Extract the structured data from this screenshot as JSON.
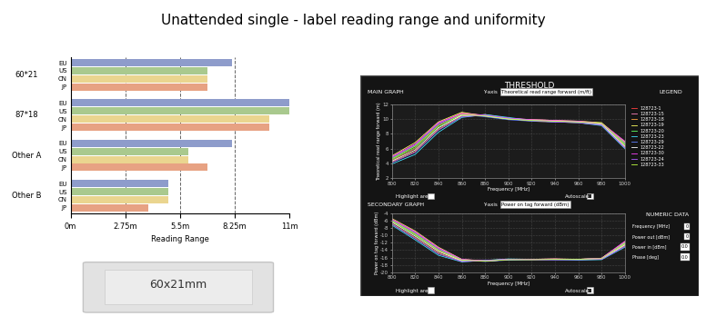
{
  "title": "Unattended single - label reading range and uniformity",
  "chart_data": [
    {
      "type": "bar",
      "orientation": "horizontal",
      "grid": true,
      "categories": [
        "60*21",
        "87*18",
        "Other A",
        "Other B"
      ],
      "series": [
        {
          "name": "EU",
          "color": "#8e9ccb",
          "values": [
            8.1,
            11.0,
            8.1,
            4.9
          ]
        },
        {
          "name": "US",
          "color": "#a9c98e",
          "values": [
            6.9,
            11.0,
            5.9,
            4.9
          ]
        },
        {
          "name": "CN",
          "color": "#ead58f",
          "values": [
            6.9,
            10.0,
            5.9,
            4.9
          ]
        },
        {
          "name": "JP",
          "color": "#e7a283",
          "values": [
            6.9,
            10.0,
            6.9,
            3.9
          ]
        }
      ],
      "xlabel": "Reading Range",
      "xlim": [
        0,
        11
      ],
      "xticks": [
        {
          "value": 0,
          "label": "0m"
        },
        {
          "value": 2.75,
          "label": "2.75m"
        },
        {
          "value": 5.5,
          "label": "5.5m"
        },
        {
          "value": 8.25,
          "label": "8.25m"
        },
        {
          "value": 11,
          "label": "11m"
        }
      ]
    },
    {
      "type": "line",
      "grid": true,
      "legend": "right",
      "xlabel": "Frequency [MHz]",
      "ylabel": "Theoretical read range forward (m)",
      "x": [
        800,
        820,
        840,
        860,
        880,
        900,
        920,
        940,
        960,
        980,
        1000
      ],
      "xlim": [
        800,
        1000
      ],
      "xticks": [
        800,
        820,
        840,
        860,
        880,
        900,
        920,
        940,
        960,
        980,
        1000
      ],
      "ylim": [
        2,
        12
      ],
      "yticks": [
        2,
        4,
        6,
        8,
        10,
        12
      ],
      "series": [
        {
          "name": "128723-1",
          "color": "#ff4040",
          "values": [
            4.4,
            6.0,
            9.2,
            10.7,
            10.4,
            10.0,
            9.8,
            9.7,
            9.7,
            9.4,
            6.4
          ]
        },
        {
          "name": "128723-15",
          "color": "#ff80c0",
          "values": [
            4.8,
            6.5,
            9.4,
            10.8,
            10.5,
            10.1,
            9.9,
            9.8,
            9.6,
            9.3,
            6.8
          ]
        },
        {
          "name": "128723-18",
          "color": "#ffa040",
          "values": [
            4.2,
            5.6,
            8.6,
            10.4,
            10.6,
            10.1,
            9.7,
            9.6,
            9.5,
            9.2,
            6.2
          ]
        },
        {
          "name": "128723-19",
          "color": "#ffff60",
          "values": [
            5.0,
            6.8,
            9.6,
            10.9,
            10.4,
            10.0,
            9.9,
            9.8,
            9.7,
            9.5,
            6.9
          ]
        },
        {
          "name": "128723-20",
          "color": "#60ff60",
          "values": [
            4.5,
            6.1,
            8.9,
            10.5,
            10.5,
            10.0,
            9.8,
            9.7,
            9.6,
            9.4,
            6.5
          ]
        },
        {
          "name": "128723-23",
          "color": "#40e0ff",
          "values": [
            3.9,
            5.2,
            8.2,
            10.2,
            10.6,
            10.2,
            9.8,
            9.6,
            9.5,
            9.1,
            6.0
          ]
        },
        {
          "name": "128723-29",
          "color": "#6080ff",
          "values": [
            4.7,
            6.4,
            9.3,
            10.6,
            10.3,
            9.9,
            9.7,
            9.6,
            9.6,
            9.3,
            6.7
          ]
        },
        {
          "name": "128723-22",
          "color": "#ffffff",
          "values": [
            4.3,
            5.8,
            8.8,
            10.5,
            10.4,
            10.0,
            9.8,
            9.7,
            9.6,
            9.3,
            6.3
          ]
        },
        {
          "name": "128723-30",
          "color": "#ff40ff",
          "values": [
            4.9,
            6.6,
            9.5,
            10.7,
            10.5,
            10.1,
            9.9,
            9.8,
            9.7,
            9.4,
            7.0
          ]
        },
        {
          "name": "128723-24",
          "color": "#b060ff",
          "values": [
            4.1,
            5.5,
            8.5,
            10.3,
            10.5,
            10.1,
            9.8,
            9.6,
            9.5,
            9.2,
            6.1
          ]
        },
        {
          "name": "128723-33",
          "color": "#c0ff40",
          "values": [
            4.6,
            6.3,
            9.1,
            10.6,
            10.4,
            10.0,
            9.8,
            9.7,
            9.6,
            9.4,
            6.6
          ]
        }
      ]
    },
    {
      "type": "line",
      "grid": true,
      "xlabel": "Frequency [MHz]",
      "ylabel": "Power on tag forward (dBm)",
      "x": [
        800,
        820,
        840,
        860,
        880,
        900,
        920,
        940,
        960,
        980,
        1000
      ],
      "xlim": [
        800,
        1000
      ],
      "xticks": [
        800,
        820,
        840,
        860,
        880,
        900,
        920,
        940,
        960,
        980,
        1000
      ],
      "ylim": [
        -20,
        -4
      ],
      "yticks": [
        -20,
        -18,
        -16,
        -14,
        -12,
        -10,
        -8,
        -6,
        -4
      ],
      "series": [
        {
          "color": "#ff4040",
          "values": [
            -6.2,
            -9.8,
            -14.2,
            -16.8,
            -17.0,
            -16.6,
            -16.6,
            -16.5,
            -16.5,
            -16.3,
            -12.4
          ]
        },
        {
          "color": "#ff80c0",
          "values": [
            -5.8,
            -9.2,
            -13.6,
            -16.6,
            -16.9,
            -16.5,
            -16.5,
            -16.4,
            -16.6,
            -16.4,
            -12.0
          ]
        },
        {
          "color": "#ffa040",
          "values": [
            -6.8,
            -10.6,
            -14.8,
            -17.0,
            -16.8,
            -16.5,
            -16.6,
            -16.6,
            -16.6,
            -16.5,
            -12.8
          ]
        },
        {
          "color": "#ffff60",
          "values": [
            -5.4,
            -8.8,
            -13.2,
            -16.5,
            -17.0,
            -16.6,
            -16.5,
            -16.4,
            -16.5,
            -16.2,
            -11.8
          ]
        },
        {
          "color": "#60ff60",
          "values": [
            -6.1,
            -9.9,
            -14.0,
            -16.7,
            -16.9,
            -16.6,
            -16.6,
            -16.5,
            -16.5,
            -16.3,
            -12.3
          ]
        },
        {
          "color": "#40e0ff",
          "values": [
            -7.2,
            -11.2,
            -15.4,
            -17.2,
            -16.8,
            -16.4,
            -16.5,
            -16.6,
            -16.7,
            -16.6,
            -13.2
          ]
        },
        {
          "color": "#6080ff",
          "values": [
            -5.9,
            -9.4,
            -13.8,
            -16.6,
            -17.1,
            -16.7,
            -16.6,
            -16.6,
            -16.5,
            -16.3,
            -12.1
          ]
        },
        {
          "color": "#ffffff",
          "values": [
            -6.4,
            -10.2,
            -14.4,
            -16.9,
            -17.0,
            -16.6,
            -16.5,
            -16.5,
            -16.5,
            -16.4,
            -12.6
          ]
        },
        {
          "color": "#ff40ff",
          "values": [
            -5.6,
            -9.0,
            -13.4,
            -16.5,
            -16.9,
            -16.5,
            -16.5,
            -16.4,
            -16.5,
            -16.2,
            -11.6
          ]
        },
        {
          "color": "#b060ff",
          "values": [
            -6.9,
            -10.8,
            -15.0,
            -17.1,
            -16.9,
            -16.5,
            -16.6,
            -16.6,
            -16.6,
            -16.5,
            -13.0
          ]
        },
        {
          "color": "#c0ff40",
          "values": [
            -6.0,
            -9.6,
            -14.0,
            -16.7,
            -17.0,
            -16.6,
            -16.6,
            -16.5,
            -16.5,
            -16.3,
            -12.2
          ]
        }
      ]
    }
  ],
  "label_image": {
    "text": "60x21mm"
  },
  "screenshot": {
    "title": "THRESHOLD",
    "legend_title": "LEGEND",
    "main_graph": {
      "title": "MAIN GRAPH",
      "selector_label": "Y-axis",
      "selector_value": "Theoretical read range forward (m/ft)",
      "checkboxes": [
        {
          "label": "Highlight area",
          "checked": false
        },
        {
          "label": "Autoscale",
          "checked": true
        }
      ]
    },
    "secondary_graph": {
      "title": "SECONDARY GRAPH",
      "selector_label": "Y-axis",
      "selector_value": "Power on tag forward (dBm)",
      "checkboxes": [
        {
          "label": "Highlight area",
          "checked": false
        },
        {
          "label": "Autoscale",
          "checked": true
        }
      ]
    },
    "numeric_data": {
      "title": "NUMERIC DATA",
      "fields": [
        {
          "label": "Frequency [MHz]",
          "value": "0"
        },
        {
          "label": "Power out [dBm]",
          "value": "0"
        },
        {
          "label": "Power in [dBm]",
          "value": "0.0"
        },
        {
          "label": "Phase [deg]",
          "value": "0.0"
        }
      ]
    }
  }
}
